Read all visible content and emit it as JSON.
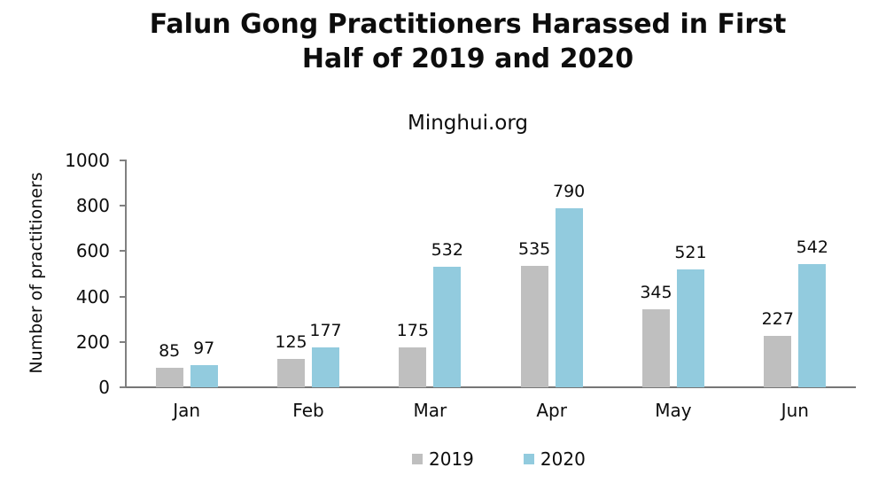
{
  "title": {
    "line1": "Falun Gong Practitioners Harassed in First",
    "line2": "Half of 2019 and 2020"
  },
  "subtitle": "Minghui.org",
  "chart_data": {
    "type": "bar",
    "title": "Falun Gong Practitioners Harassed in First Half of 2019 and 2020",
    "subtitle": "Minghui.org",
    "categories": [
      "Jan",
      "Feb",
      "Mar",
      "Apr",
      "May",
      "Jun"
    ],
    "series": [
      {
        "name": "2019",
        "color": "#bfbfbf",
        "values": [
          85,
          125,
          175,
          535,
          345,
          227
        ]
      },
      {
        "name": "2020",
        "color": "#92cbde",
        "values": [
          97,
          177,
          532,
          790,
          521,
          542
        ]
      }
    ],
    "xlabel": "",
    "ylabel": "Number of practitioners",
    "ylim": [
      0,
      1000
    ],
    "yticks": [
      0,
      200,
      400,
      600,
      800,
      1000
    ],
    "grid": false,
    "data_labels": true,
    "legend_position": "bottom"
  },
  "colors": {
    "background": "#ffffff",
    "axis": "#808080",
    "text": "#0d0d0d",
    "series_2019": "#bfbfbf",
    "series_2020": "#92cbde"
  }
}
